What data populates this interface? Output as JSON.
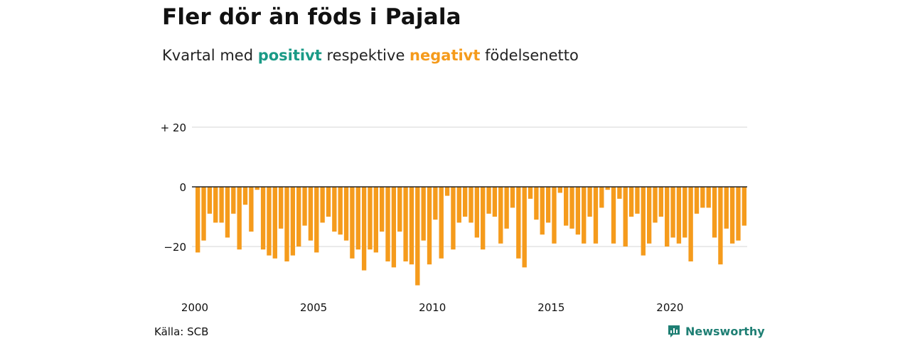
{
  "title": "Fler dör än föds i Pajala",
  "subtitle": {
    "prefix": "Kvartal med ",
    "positive": "positivt",
    "middle": " respektive ",
    "negative": "negativt",
    "suffix": " födelsenetto"
  },
  "colors": {
    "positive": "#1a9a86",
    "negative": "#f59b1c",
    "grid": "#dddddd",
    "zero": "#222222"
  },
  "source": "Källa: SCB",
  "brand": {
    "name": "Newsworthy",
    "icon": "newsworthy-logo-icon"
  },
  "chart_data": {
    "type": "bar",
    "x_start": 2000.0,
    "x_step": 0.25,
    "values": [
      -22,
      -18,
      -9,
      -12,
      -12,
      -17,
      -9,
      -21,
      -6,
      -15,
      -1,
      -21,
      -23,
      -24,
      -14,
      -25,
      -23,
      -20,
      -13,
      -18,
      -22,
      -12,
      -10,
      -15,
      -16,
      -18,
      -24,
      -21,
      -28,
      -21,
      -22,
      -15,
      -25,
      -27,
      -15,
      -25,
      -26,
      -33,
      -18,
      -26,
      -11,
      -24,
      -3,
      -21,
      -12,
      -10,
      -12,
      -17,
      -21,
      -9,
      -10,
      -19,
      -14,
      -7,
      -24,
      -27,
      -4,
      -11,
      -16,
      -12,
      -19,
      -2,
      -13,
      -14,
      -16,
      -19,
      -10,
      -19,
      -7,
      -1,
      -19,
      -4,
      -20,
      -10,
      -9,
      -23,
      -19,
      -12,
      -10,
      -20,
      -17,
      -19,
      -17,
      -25,
      -9,
      -7,
      -7,
      -17,
      -26,
      -14,
      -19,
      -18,
      -13
    ],
    "ylim": [
      -33,
      22
    ],
    "y_ticks": [
      {
        "value": 20,
        "label": "+ 20"
      },
      {
        "value": 0,
        "label": "0"
      },
      {
        "value": -20,
        "label": "−20"
      }
    ],
    "x_ticks": [
      {
        "value": 2000,
        "label": "2000"
      },
      {
        "value": 2005,
        "label": "2005"
      },
      {
        "value": 2010,
        "label": "2010"
      },
      {
        "value": 2015,
        "label": "2015"
      },
      {
        "value": 2020,
        "label": "2020"
      }
    ],
    "grid": true,
    "legend": "none"
  }
}
